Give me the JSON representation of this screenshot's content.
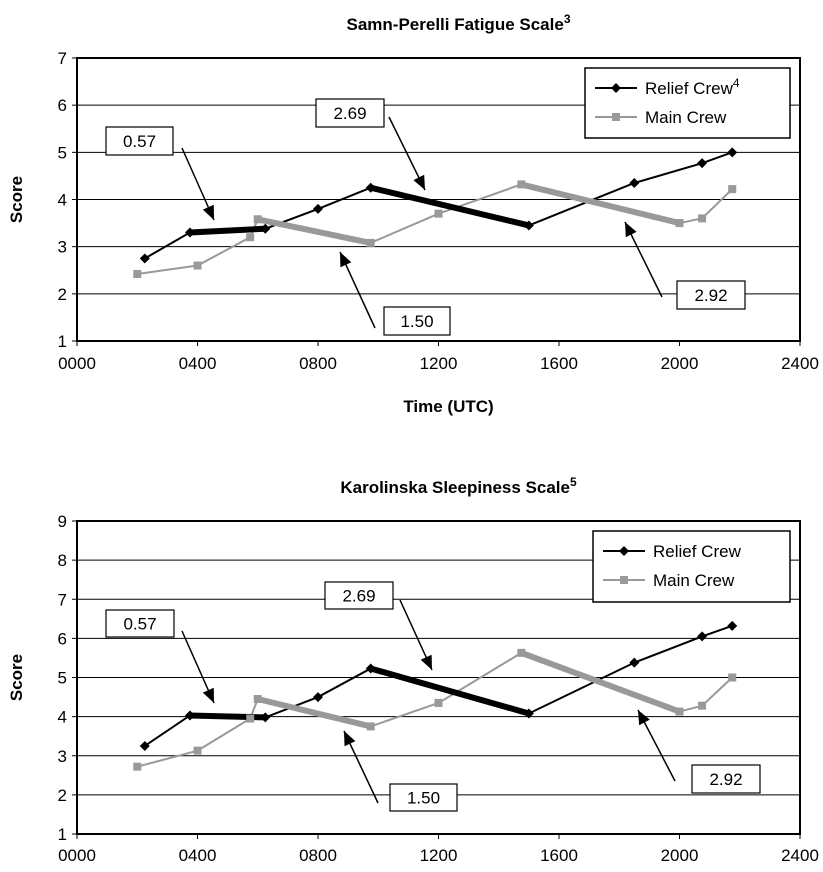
{
  "charts": [
    {
      "type": "line",
      "title": "Samn-Perelli Fatigue Scale",
      "title_sup": "3",
      "ylabel": "Score",
      "xlabel": "Time (UTC)",
      "ylim": [
        1,
        7
      ],
      "xlim": [
        "0000",
        "2400"
      ],
      "yticks": [
        "1",
        "2",
        "3",
        "4",
        "5",
        "6",
        "7"
      ],
      "xticks": [
        "0000",
        "0400",
        "0800",
        "1200",
        "1600",
        "2000",
        "2400"
      ],
      "grid": true,
      "legend_position": "top-right",
      "series": [
        {
          "name": "Relief Crew",
          "name_sup": "4",
          "color": "#000000",
          "marker": "diamond",
          "x": [
            "0215",
            "0345",
            "0615",
            "0800",
            "0945",
            "1500",
            "1830",
            "2045",
            "2145"
          ],
          "y": [
            2.75,
            3.3,
            3.38,
            3.8,
            4.25,
            3.45,
            4.35,
            4.77,
            5.0
          ]
        },
        {
          "name": "Main Crew",
          "color": "#999999",
          "marker": "square",
          "x": [
            "0200",
            "0400",
            "0545",
            "0600",
            "0945",
            "1200",
            "1445",
            "2000",
            "2045",
            "2145"
          ],
          "y": [
            2.42,
            2.6,
            3.2,
            3.58,
            3.08,
            3.7,
            4.32,
            3.5,
            3.6,
            4.22
          ]
        }
      ],
      "highlight_segments": [
        {
          "series": "Relief Crew",
          "from": "0345",
          "to": "0615",
          "label": "0.57"
        },
        {
          "series": "Relief Crew",
          "from": "0945",
          "to": "1500",
          "label": "2.69"
        },
        {
          "series": "Main Crew",
          "from": "0600",
          "to": "0945",
          "label": "1.50"
        },
        {
          "series": "Main Crew",
          "from": "1445",
          "to": "2000",
          "label": "2.92"
        }
      ]
    },
    {
      "type": "line",
      "title": "Karolinska Sleepiness Scale",
      "title_sup": "5",
      "ylabel": "Score",
      "xlabel": "",
      "ylim": [
        1,
        9
      ],
      "xlim": [
        "0000",
        "2400"
      ],
      "yticks": [
        "1",
        "2",
        "3",
        "4",
        "5",
        "6",
        "7",
        "8",
        "9"
      ],
      "xticks": [
        "0000",
        "0400",
        "0800",
        "1200",
        "1600",
        "2000",
        "2400"
      ],
      "grid": true,
      "legend_position": "top-right",
      "series": [
        {
          "name": "Relief Crew",
          "name_sup": "",
          "color": "#000000",
          "marker": "diamond",
          "x": [
            "0215",
            "0345",
            "0615",
            "0800",
            "0945",
            "1500",
            "1830",
            "2045",
            "2145"
          ],
          "y": [
            3.25,
            4.03,
            3.98,
            4.5,
            5.23,
            4.08,
            5.38,
            6.05,
            6.32
          ]
        },
        {
          "name": "Main Crew",
          "color": "#999999",
          "marker": "square",
          "x": [
            "0200",
            "0400",
            "0545",
            "0600",
            "0945",
            "1200",
            "1445",
            "2000",
            "2045",
            "2145"
          ],
          "y": [
            2.72,
            3.13,
            3.95,
            4.45,
            3.75,
            4.35,
            5.63,
            4.13,
            4.28,
            5.0
          ]
        }
      ],
      "highlight_segments": [
        {
          "series": "Relief Crew",
          "from": "0345",
          "to": "0615",
          "label": "0.57"
        },
        {
          "series": "Relief Crew",
          "from": "0945",
          "to": "1500",
          "label": "2.69"
        },
        {
          "series": "Main Crew",
          "from": "0600",
          "to": "0945",
          "label": "1.50"
        },
        {
          "series": "Main Crew",
          "from": "1445",
          "to": "2000",
          "label": "2.92"
        }
      ]
    }
  ]
}
